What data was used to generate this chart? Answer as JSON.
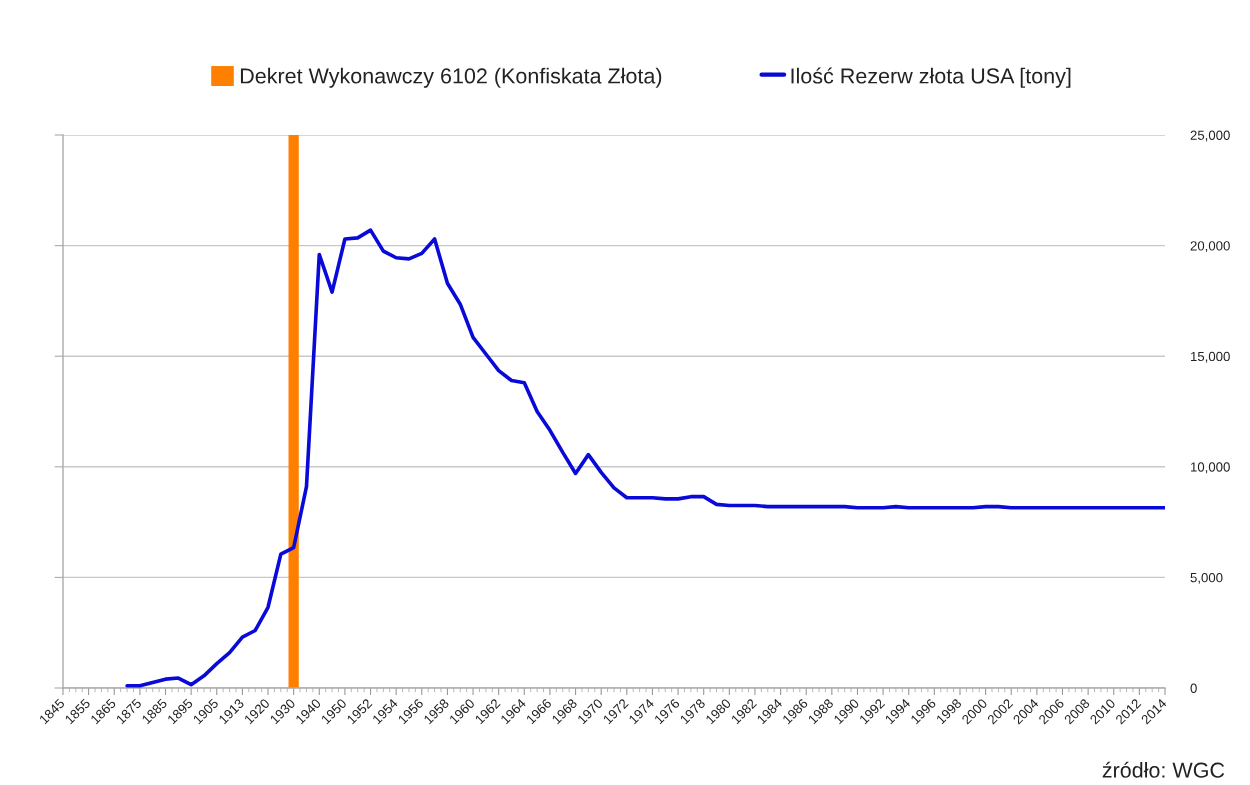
{
  "chart_data": {
    "type": "line",
    "categories": [
      "1845",
      null,
      "1855",
      null,
      "1865",
      null,
      "1875",
      null,
      "1885",
      null,
      "1895",
      null,
      "1905",
      null,
      "1913",
      null,
      "1920",
      null,
      "1930",
      null,
      "1940",
      null,
      "1950",
      null,
      "1952",
      null,
      "1954",
      null,
      "1956",
      null,
      "1958",
      null,
      "1960",
      null,
      "1962",
      null,
      "1964",
      null,
      "1966",
      null,
      "1968",
      null,
      "1970",
      null,
      "1972",
      null,
      "1974",
      null,
      "1976",
      null,
      "1978",
      null,
      "1980",
      null,
      "1982",
      null,
      "1984",
      null,
      "1986",
      null,
      "1988",
      null,
      "1990",
      null,
      "1992",
      null,
      "1994",
      null,
      "1996",
      null,
      "1998",
      null,
      "2000",
      null,
      "2002",
      null,
      "2004",
      null,
      "2006",
      null,
      "2008",
      null,
      "2010",
      null,
      "2012",
      null,
      "2014"
    ],
    "series": [
      {
        "type": "bar",
        "name": "Dekret Wykonawczy 6102 (Konfiskata Złota)",
        "color": "#ff7f00",
        "values": [
          null,
          null,
          null,
          null,
          null,
          null,
          null,
          null,
          null,
          null,
          null,
          null,
          null,
          null,
          null,
          null,
          null,
          null,
          25000,
          null,
          null,
          null,
          null,
          null,
          null,
          null,
          null,
          null,
          null,
          null,
          null,
          null,
          null,
          null,
          null,
          null,
          null,
          null,
          null,
          null,
          null,
          null,
          null,
          null,
          null,
          null,
          null,
          null,
          null,
          null,
          null,
          null,
          null,
          null,
          null,
          null,
          null,
          null,
          null,
          null,
          null,
          null,
          null,
          null,
          null,
          null,
          null,
          null,
          null,
          null,
          null,
          null,
          null,
          null,
          null,
          null,
          null,
          null,
          null,
          null,
          null,
          null,
          null,
          null,
          null,
          null,
          null
        ]
      },
      {
        "name": "Ilość Rezerw złota USA [tony]",
        "color": "#0a0ad8",
        "values": [
          null,
          null,
          null,
          null,
          null,
          100,
          100,
          250,
          400,
          450,
          150,
          550,
          1100,
          1600,
          2300,
          2600,
          3650,
          6050,
          6350,
          9100,
          19600,
          17900,
          20300,
          20350,
          20700,
          19750,
          19450,
          19400,
          19650,
          20300,
          18300,
          17350,
          15850,
          15100,
          14350,
          13900,
          13800,
          12500,
          11650,
          10650,
          9700,
          10550,
          9750,
          9050,
          8600,
          8600,
          8600,
          8550,
          8550,
          8650,
          8650,
          8300,
          8250,
          8250,
          8250,
          8200,
          8200,
          8200,
          8200,
          8200,
          8200,
          8200,
          8150,
          8150,
          8150,
          8200,
          8150,
          8150,
          8150,
          8150,
          8150,
          8150,
          8200,
          8200,
          8150,
          8150,
          8150,
          8150,
          8150,
          8150,
          8150,
          8150,
          8150,
          8150,
          8150,
          8150,
          8150
        ]
      }
    ],
    "ylim": [
      0,
      25000
    ],
    "yticks": [
      0,
      {
        "value": 5000,
        "label": "5,000"
      },
      {
        "value": 10000,
        "label": "10,000"
      },
      {
        "value": 15000,
        "label": "15,000"
      },
      {
        "value": 20000,
        "label": "20,000"
      },
      {
        "value": 25000,
        "label": "25,000"
      }
    ],
    "grid": "y",
    "legend": "top",
    "annotations": [
      "źródło: WGC"
    ]
  }
}
